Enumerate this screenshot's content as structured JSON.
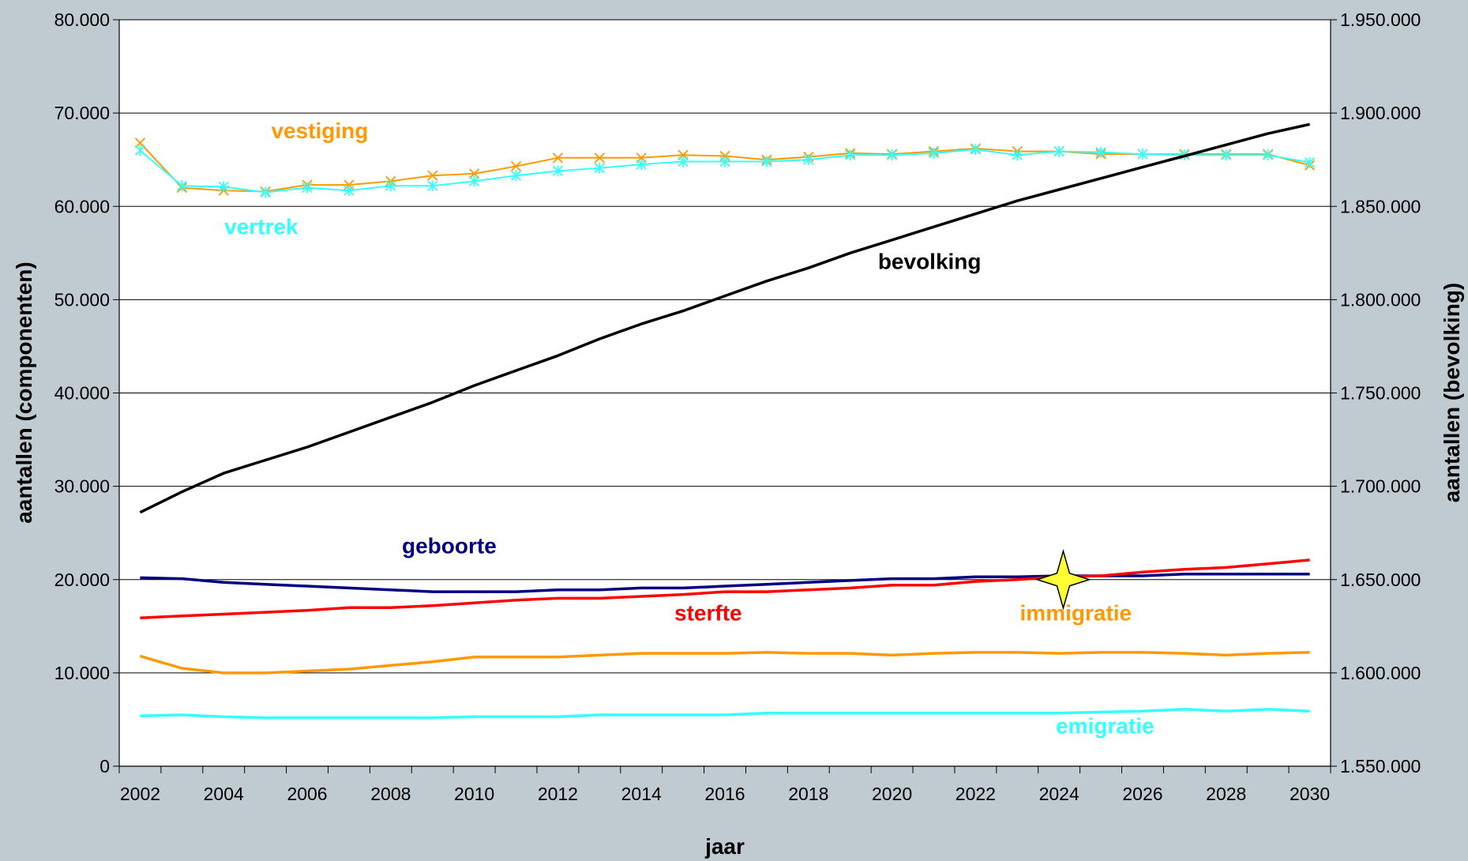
{
  "chart_data": {
    "type": "line",
    "title": "",
    "xlabel": "jaar",
    "ylabel_left": "aantallen (componenten)",
    "ylabel_right": "aantallen (bevolking)",
    "x": [
      2002,
      2003,
      2004,
      2005,
      2006,
      2007,
      2008,
      2009,
      2010,
      2011,
      2012,
      2013,
      2014,
      2015,
      2016,
      2017,
      2018,
      2019,
      2020,
      2021,
      2022,
      2023,
      2024,
      2025,
      2026,
      2027,
      2028,
      2029,
      2030
    ],
    "x_ticks": [
      "2002",
      "2004",
      "2006",
      "2008",
      "2010",
      "2012",
      "2014",
      "2016",
      "2018",
      "2020",
      "2022",
      "2024",
      "2026",
      "2028",
      "2030"
    ],
    "ylim_left": [
      0,
      80000
    ],
    "ylim_right": [
      1550000,
      1950000
    ],
    "y_ticks_left": [
      "0",
      "10.000",
      "20.000",
      "30.000",
      "40.000",
      "50.000",
      "60.000",
      "70.000",
      "80.000"
    ],
    "y_ticks_right": [
      "1.550.000",
      "1.600.000",
      "1.650.000",
      "1.700.000",
      "1.750.000",
      "1.800.000",
      "1.850.000",
      "1.900.000",
      "1.950.000"
    ],
    "grid": true,
    "legend": "none (inline labels)",
    "series": [
      {
        "name": "vestiging",
        "axis": "left",
        "color": "#ff9900",
        "marker": "x",
        "values": [
          66800,
          62000,
          61700,
          61600,
          62300,
          62300,
          62700,
          63300,
          63500,
          64300,
          65200,
          65200,
          65200,
          65500,
          65400,
          65000,
          65300,
          65700,
          65600,
          65900,
          66200,
          65900,
          65900,
          65600,
          65600,
          65600,
          65600,
          65600,
          64400
        ]
      },
      {
        "name": "vertrek",
        "axis": "left",
        "color": "#33ffff",
        "marker": "*",
        "values": [
          66000,
          62200,
          62100,
          61500,
          62000,
          61700,
          62200,
          62200,
          62700,
          63300,
          63800,
          64100,
          64500,
          64800,
          64800,
          64800,
          65000,
          65500,
          65500,
          65700,
          66100,
          65500,
          65900,
          65800,
          65600,
          65500,
          65500,
          65500,
          64700
        ]
      },
      {
        "name": "bevolking",
        "axis": "right",
        "color": "#000000",
        "marker": "none",
        "values": [
          1686000,
          1697000,
          1707000,
          1714000,
          1721000,
          1729000,
          1737000,
          1745000,
          1754000,
          1762000,
          1770000,
          1779000,
          1787000,
          1794000,
          1802000,
          1810000,
          1817000,
          1825000,
          1832000,
          1839000,
          1846000,
          1853000,
          1859000,
          1865000,
          1871000,
          1877000,
          1883000,
          1889000,
          1894000
        ]
      },
      {
        "name": "geboorte",
        "axis": "left",
        "color": "#000080",
        "marker": "none",
        "values": [
          20200,
          20100,
          19700,
          19500,
          19300,
          19100,
          18900,
          18700,
          18700,
          18700,
          18900,
          18900,
          19100,
          19100,
          19300,
          19500,
          19700,
          19900,
          20100,
          20100,
          20300,
          20300,
          20400,
          20400,
          20400,
          20600,
          20600,
          20600,
          20600
        ]
      },
      {
        "name": "sterfte",
        "axis": "left",
        "color": "#ff0000",
        "marker": "none",
        "values": [
          15900,
          16100,
          16300,
          16500,
          16700,
          17000,
          17000,
          17200,
          17500,
          17800,
          18000,
          18000,
          18200,
          18400,
          18700,
          18700,
          18900,
          19100,
          19400,
          19400,
          19800,
          20000,
          20300,
          20400,
          20800,
          21100,
          21300,
          21700,
          22100
        ]
      },
      {
        "name": "immigratie",
        "axis": "left",
        "color": "#ff9900",
        "marker": "none",
        "values": [
          11800,
          10500,
          10000,
          10000,
          10200,
          10400,
          10800,
          11200,
          11700,
          11700,
          11700,
          11900,
          12100,
          12100,
          12100,
          12200,
          12100,
          12100,
          11900,
          12100,
          12200,
          12200,
          12100,
          12200,
          12200,
          12100,
          11900,
          12100,
          12200
        ]
      },
      {
        "name": "emigratie",
        "axis": "left",
        "color": "#33ffff",
        "marker": "none",
        "values": [
          5400,
          5500,
          5300,
          5200,
          5200,
          5200,
          5200,
          5200,
          5300,
          5300,
          5300,
          5500,
          5500,
          5500,
          5500,
          5700,
          5700,
          5700,
          5700,
          5700,
          5700,
          5700,
          5700,
          5800,
          5900,
          6100,
          5900,
          6100,
          5900
        ]
      }
    ],
    "labels": [
      {
        "text": "vestiging",
        "color": "#ff9900",
        "x": 2006.3,
        "y": 67300
      },
      {
        "text": "vertrek",
        "color": "#33ffff",
        "x": 2004.9,
        "y": 57000
      },
      {
        "text": "bevolking",
        "color": "#000000",
        "x": 2020.9,
        "y": 53300
      },
      {
        "text": "geboorte",
        "color": "#000080",
        "x": 2009.4,
        "y": 22800
      },
      {
        "text": "sterfte",
        "color": "#ff0000",
        "x": 2015.6,
        "y": 15600
      },
      {
        "text": "immigratie",
        "color": "#ff9900",
        "x": 2024.4,
        "y": 15600
      },
      {
        "text": "emigratie",
        "color": "#33ffff",
        "x": 2025.1,
        "y": 3500
      }
    ],
    "marker_star": {
      "x": 2024.1,
      "y": 20000,
      "color": "#ffff33"
    }
  }
}
